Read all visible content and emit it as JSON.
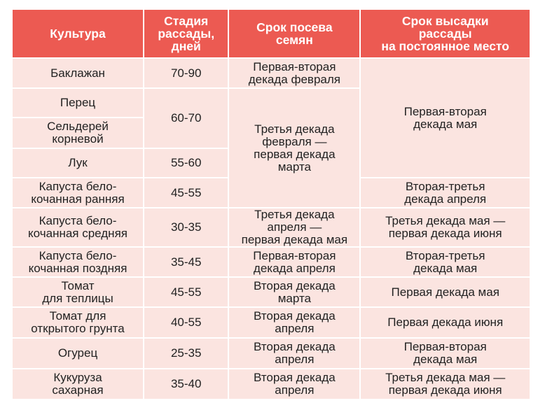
{
  "header": {
    "culture": "Культура",
    "stage": [
      "Стадия",
      "рассады,",
      "дней"
    ],
    "sowing": [
      "Срок посева",
      "семян"
    ],
    "planting": [
      "Срок высадки",
      "рассады",
      "на постоянное место"
    ]
  },
  "rows": [
    {
      "culture": [
        "Баклажан"
      ],
      "days": "70-90",
      "sowing": [
        "Первая-вторая",
        "декада февраля"
      ],
      "planting": [
        "Первая-вторая",
        "декада мая"
      ]
    },
    {
      "culture": [
        "Перец"
      ],
      "days": "60-70",
      "sowing": [
        "Третья декада",
        "февраля —",
        "первая декада",
        "марта"
      ]
    },
    {
      "culture": [
        "Сельдерей",
        "корневой"
      ]
    },
    {
      "culture": [
        "Лук"
      ],
      "days": "55-60"
    },
    {
      "culture": [
        "Капуста бело-",
        "кочанная ранняя"
      ],
      "days": "45-55",
      "planting": [
        "Вторая-третья",
        "декада апреля"
      ]
    },
    {
      "culture": [
        "Капуста бело-",
        "кочанная средняя"
      ],
      "days": "30-35",
      "sowing": [
        "Третья декада",
        "апреля —",
        "первая декада мая"
      ],
      "planting": [
        "Третья декада мая —",
        "первая декада июня"
      ]
    },
    {
      "culture": [
        "Капуста бело-",
        "кочанная поздняя"
      ],
      "days": "35-45",
      "sowing": [
        "Первая-вторая",
        "декада апреля"
      ],
      "planting": [
        "Вторая-третья",
        "декада мая"
      ]
    },
    {
      "culture": [
        "Томат",
        "для теплицы"
      ],
      "days": "45-55",
      "sowing": [
        "Вторая декада",
        "марта"
      ],
      "planting": [
        "Первая декада мая"
      ]
    },
    {
      "culture": [
        "Томат для",
        "открытого грунта"
      ],
      "days": "40-55",
      "sowing": [
        "Вторая декада",
        "апреля"
      ],
      "planting": [
        "Первая декада июня"
      ]
    },
    {
      "culture": [
        "Огурец"
      ],
      "days": "25-35",
      "sowing": [
        "Вторая декада",
        "апреля"
      ],
      "planting": [
        "Первая-вторая",
        "декада мая"
      ]
    },
    {
      "culture": [
        "Кукуруза",
        "сахарная"
      ],
      "days": "35-40",
      "sowing": [
        "Вторая декада",
        "апреля"
      ],
      "planting": [
        "Третья декада мая —",
        "первая декада июня"
      ]
    }
  ],
  "colors": {
    "header_bg": "#ec5a52",
    "cell_bg": "#fbe4e0",
    "grid": "#ffffff"
  }
}
